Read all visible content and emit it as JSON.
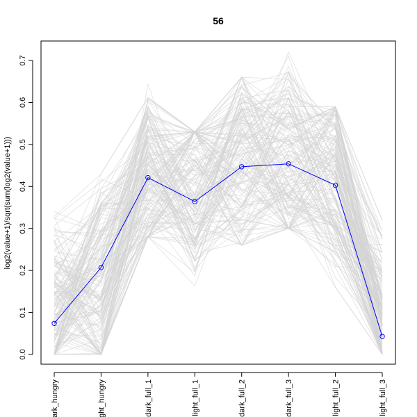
{
  "chart_data": {
    "type": "line",
    "title": "56",
    "ylabel": "log2(value+1)/sqrt(sum(log2(value+1)))",
    "xlabel": "",
    "categories": [
      "dark_hungry",
      "light_hungry",
      "dark_full_1",
      "light_full_1",
      "dark_full_2",
      "dark_full_3",
      "light_full_2",
      "light_full_3"
    ],
    "ylim": [
      0,
      0.7
    ],
    "yticks": [
      0.0,
      0.1,
      0.2,
      0.3,
      0.4,
      0.5,
      0.6,
      0.7
    ],
    "ytick_labels": [
      "0.0",
      "0.1",
      "0.2",
      "0.3",
      "0.4",
      "0.5",
      "0.6",
      "0.7"
    ],
    "grid": false,
    "highlight_series": {
      "color": "#0000ff",
      "values": [
        0.074,
        0.207,
        0.421,
        0.364,
        0.447,
        0.454,
        0.403,
        0.043
      ]
    },
    "background_series": {
      "color": "#d3d3d3",
      "count": 160,
      "values_min": [
        0.0,
        0.0,
        0.28,
        0.13,
        0.26,
        0.3,
        0.16,
        0.0
      ],
      "values_max": [
        0.34,
        0.43,
        0.65,
        0.53,
        0.66,
        0.72,
        0.59,
        0.33
      ],
      "values_typical": [
        0.15,
        0.2,
        0.43,
        0.4,
        0.47,
        0.47,
        0.42,
        0.12
      ]
    }
  }
}
